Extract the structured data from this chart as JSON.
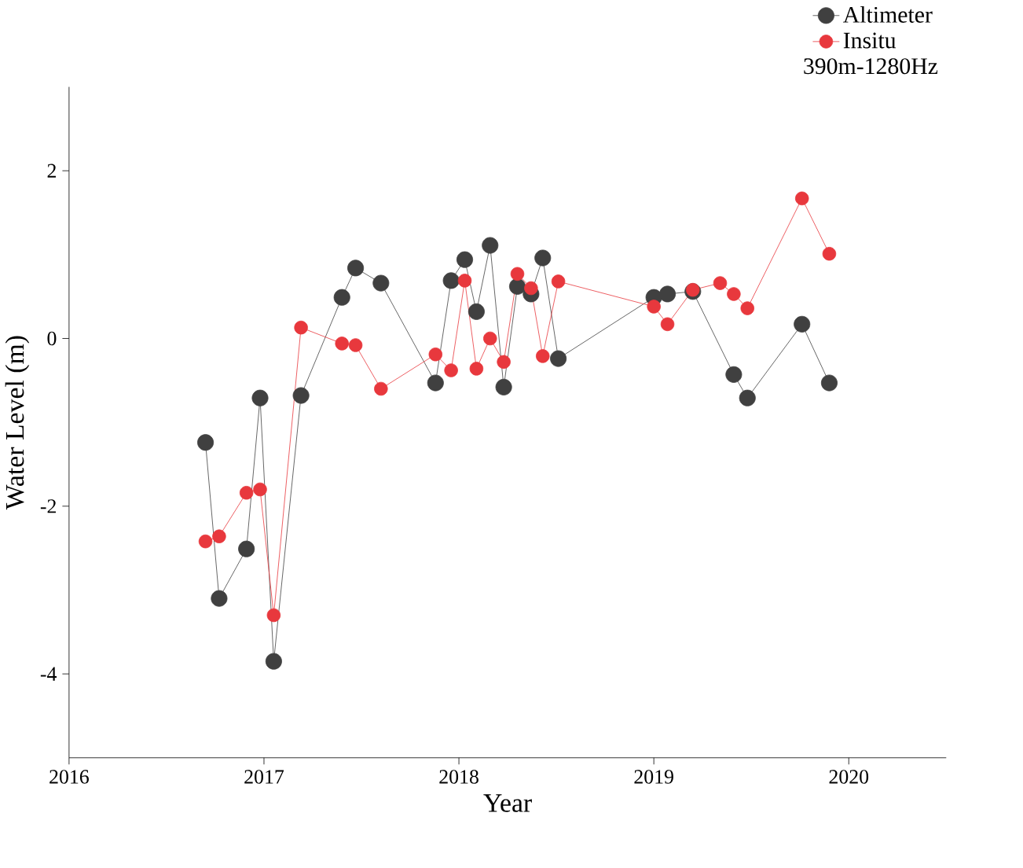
{
  "chart_data": {
    "type": "line",
    "xlabel": "Year",
    "ylabel": "Water Level (m)",
    "legend_title": "390m-1280Hz",
    "legend": "top right",
    "marker": "circle",
    "line_style": "solid",
    "grid": false,
    "xlim": [
      2016,
      2020.5
    ],
    "ylim": [
      -5,
      3
    ],
    "xticks": [
      2016,
      2017,
      2018,
      2019,
      2020
    ],
    "yticks": [
      -4,
      -2,
      0,
      2
    ],
    "series": [
      {
        "name": "Altimeter",
        "color": "#404040",
        "x": [
          2016.7,
          2016.77,
          2016.91,
          2016.98,
          2017.05,
          2017.19,
          2017.4,
          2017.47,
          2017.6,
          2017.88,
          2017.96,
          2018.03,
          2018.09,
          2018.16,
          2018.23,
          2018.3,
          2018.37,
          2018.43,
          2018.51,
          2019.0,
          2019.07,
          2019.2,
          2019.41,
          2019.48,
          2019.76,
          2019.9
        ],
        "values": [
          -1.24,
          -3.1,
          -2.51,
          -0.71,
          -3.85,
          -0.68,
          0.49,
          0.84,
          0.66,
          -0.53,
          0.69,
          0.94,
          0.32,
          1.11,
          -0.58,
          0.62,
          0.53,
          0.96,
          -0.24,
          0.49,
          0.53,
          0.56,
          -0.43,
          -0.71,
          0.17,
          -0.53
        ]
      },
      {
        "name": "Insitu",
        "color": "#e8383d",
        "x": [
          2016.7,
          2016.77,
          2016.91,
          2016.98,
          2017.05,
          2017.19,
          2017.4,
          2017.47,
          2017.6,
          2017.88,
          2017.96,
          2018.03,
          2018.09,
          2018.16,
          2018.23,
          2018.3,
          2018.37,
          2018.43,
          2018.51,
          2019.0,
          2019.07,
          2019.2,
          2019.34,
          2019.41,
          2019.48,
          2019.76,
          2019.9
        ],
        "values": [
          -2.42,
          -2.36,
          -1.84,
          -1.8,
          -3.3,
          0.13,
          -0.06,
          -0.08,
          -0.6,
          -0.19,
          -0.38,
          0.69,
          -0.36,
          0.0,
          -0.28,
          0.77,
          0.6,
          -0.21,
          0.68,
          0.38,
          0.17,
          0.58,
          0.66,
          0.53,
          0.36,
          1.67,
          1.01
        ]
      }
    ]
  }
}
